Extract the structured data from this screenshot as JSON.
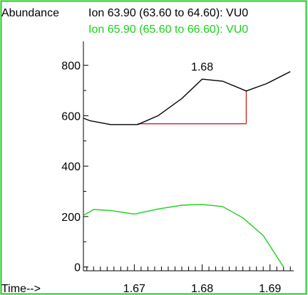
{
  "chart_data": {
    "type": "line",
    "ylabel": "Abundance",
    "xlabel": "Time-->",
    "xlim": [
      1.6625,
      1.6935
    ],
    "ylim": [
      -15,
      895
    ],
    "x_ticks": [
      1.67,
      1.68,
      1.69
    ],
    "y_ticks": [
      0,
      200,
      400,
      600,
      800
    ],
    "grid": false,
    "series": [
      {
        "name": "Ion  63.90 (63.60 to 64.60): VU0",
        "color": "#000000",
        "x": [
          1.6625,
          1.6635,
          1.6665,
          1.6705,
          1.6735,
          1.677,
          1.68,
          1.683,
          1.6865,
          1.6895,
          1.693
        ],
        "y": [
          590,
          580,
          565,
          565,
          600,
          668,
          745,
          737,
          698,
          727,
          775
        ]
      },
      {
        "name": "Ion  65.90 (65.60 to 66.60): VU0",
        "color": "#19d219",
        "x": [
          1.6625,
          1.664,
          1.6665,
          1.67,
          1.6735,
          1.677,
          1.68,
          1.683,
          1.686,
          1.689,
          1.692
        ],
        "y": [
          205,
          228,
          224,
          210,
          230,
          245,
          248,
          240,
          195,
          125,
          0
        ]
      }
    ],
    "integration_baseline": {
      "x": [
        1.6705,
        1.6865
      ],
      "y": 568,
      "peak_end_y": 698,
      "color": "#d22020"
    },
    "annotations": [
      {
        "text": "1.68",
        "x": 1.68,
        "y": 745
      }
    ]
  }
}
